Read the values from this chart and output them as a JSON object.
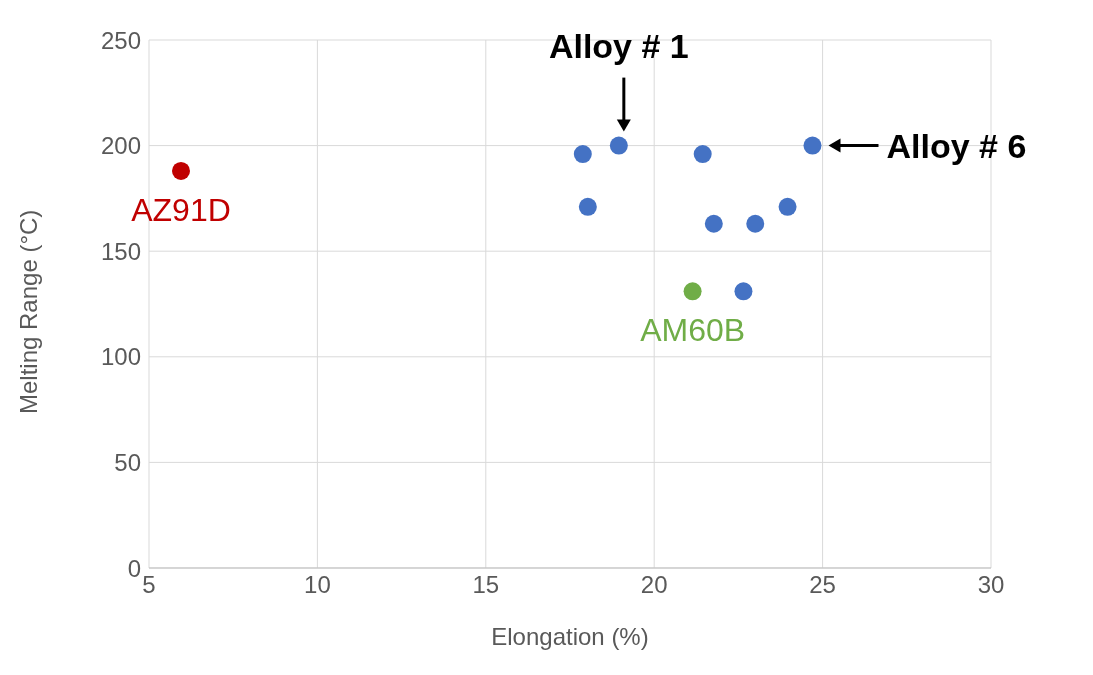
{
  "chart_data": {
    "type": "scatter",
    "xlabel": "Elongation (%)",
    "ylabel": "Melting Range (°C)",
    "xlim": [
      5,
      30
    ],
    "xticks": [
      5,
      10,
      15,
      20,
      25,
      30
    ],
    "ylim": [
      0,
      250
    ],
    "yticks": [
      0,
      50,
      100,
      150,
      200,
      250
    ],
    "grid": true,
    "marker": "circle",
    "series": [
      {
        "name": "AZ91D",
        "color": "#c00000",
        "x": [
          5.95
        ],
        "values": [
          188
        ]
      },
      {
        "name": "AM60B",
        "color": "#70ad47",
        "x": [
          21.14
        ],
        "values": [
          131
        ]
      },
      {
        "color": "#4472c4",
        "x": [
          17.88,
          18.95,
          18.03,
          21.44,
          21.77,
          23.0,
          22.65,
          23.96,
          24.7
        ],
        "values": [
          196,
          200,
          171,
          196,
          163,
          163,
          131,
          171,
          200
        ]
      }
    ],
    "annotations": [
      {
        "text": "Alloy # 1",
        "x": 18.95,
        "y": 200
      },
      {
        "text": "Alloy # 6",
        "x": 24.7,
        "y": 200
      }
    ]
  }
}
